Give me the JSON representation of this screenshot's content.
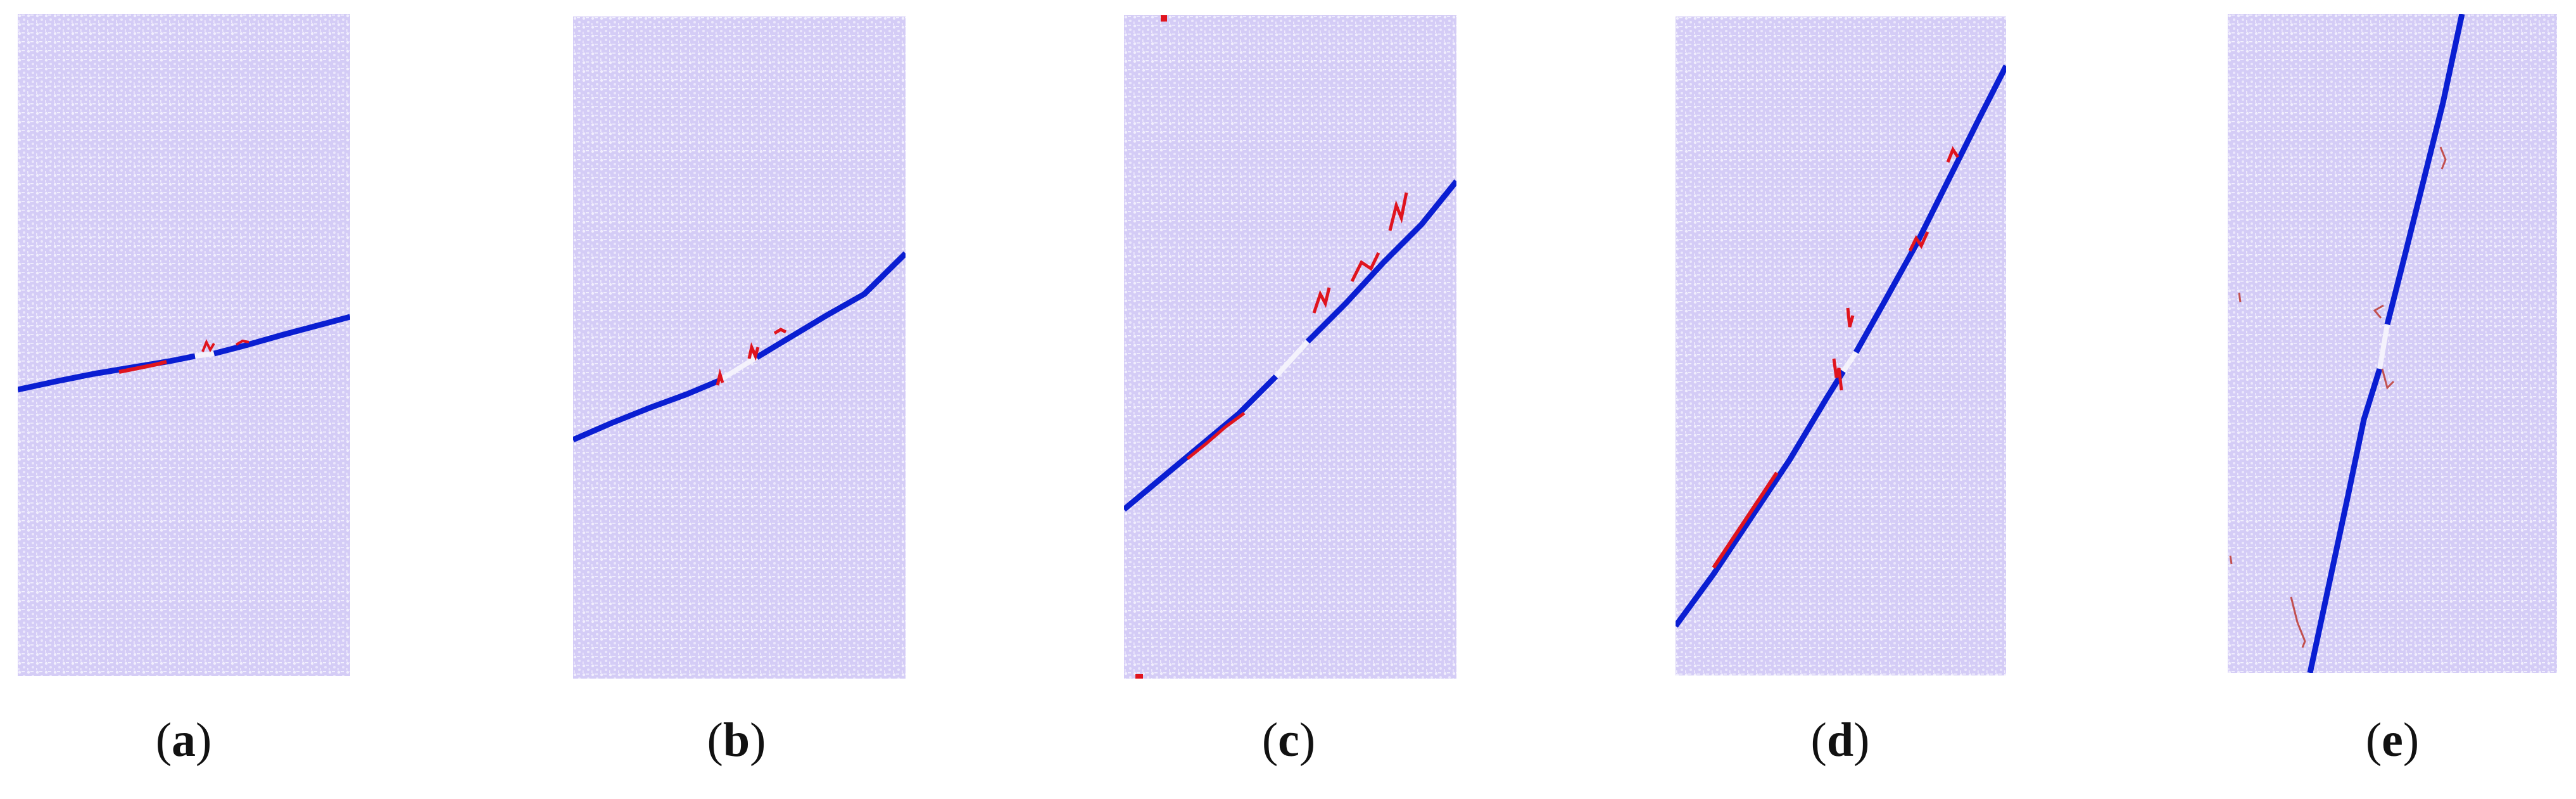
{
  "colors": {
    "background": "#ffffff",
    "specimen_fill": "#d4ccf6",
    "specimen_dots": "#efecfd",
    "crack_main": "#0a1ed2",
    "crack_secondary": "#e0141e",
    "gap": "#f4f2fc"
  },
  "panels": [
    {
      "label_open": "(",
      "label_letter": "a",
      "label_close": ")"
    },
    {
      "label_open": "(",
      "label_letter": "b",
      "label_close": ")"
    },
    {
      "label_open": "(",
      "label_letter": "c",
      "label_close": ")"
    },
    {
      "label_open": "(",
      "label_letter": "d",
      "label_close": ")"
    },
    {
      "label_open": "(",
      "label_letter": "e",
      "label_close": ")"
    }
  ]
}
